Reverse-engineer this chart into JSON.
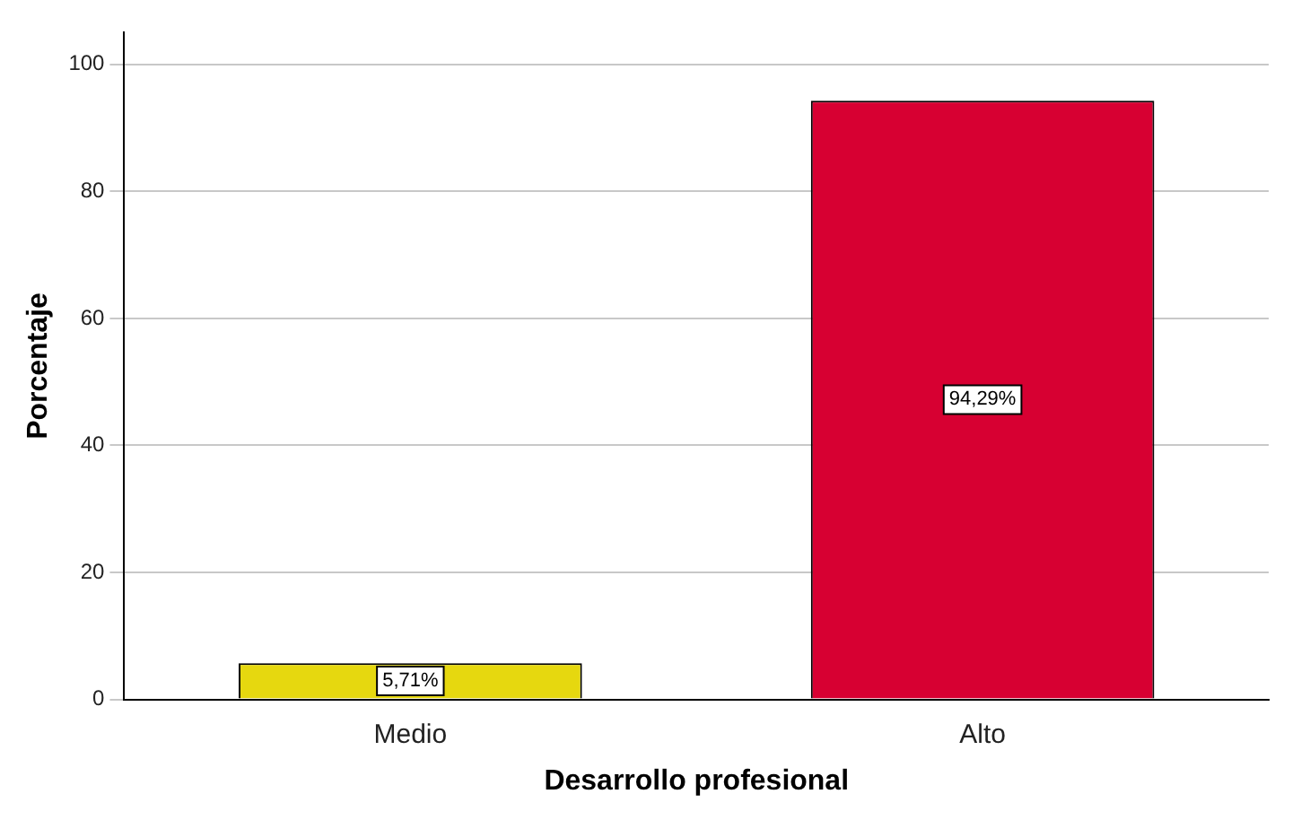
{
  "chart_data": {
    "type": "bar",
    "xlabel": "Desarrollo profesional",
    "ylabel": "Porcentaje",
    "categories": [
      "Medio",
      "Alto"
    ],
    "values": [
      5.71,
      94.29
    ],
    "colors": [
      "#e6d80f",
      "#d70032"
    ],
    "value_labels": [
      "5,71%",
      "94,29%"
    ],
    "ylim": [
      0,
      105
    ],
    "yticks": [
      0,
      20,
      40,
      60,
      80,
      100
    ],
    "grid": "y",
    "legend": false
  }
}
